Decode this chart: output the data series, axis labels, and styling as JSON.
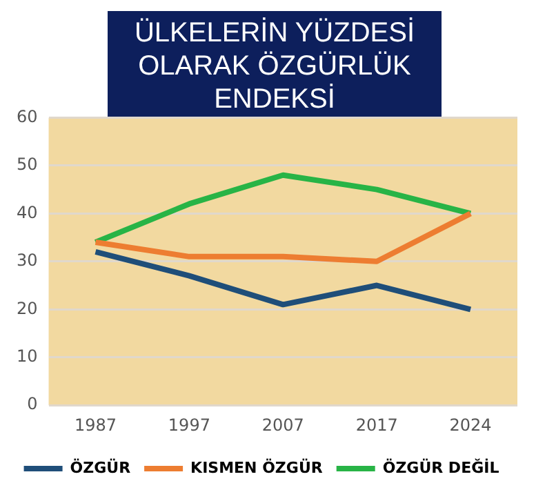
{
  "chart_data": {
    "type": "line",
    "title": "ÜLKELERİN YÜZDESİ OLARAK ÖZGÜRLÜK ENDEKSİ",
    "categories": [
      "1987",
      "1997",
      "2007",
      "2017",
      "2024"
    ],
    "series": [
      {
        "name": "ÖZGÜR",
        "color": "#1f4e79",
        "values": [
          32,
          27,
          21,
          25,
          20
        ]
      },
      {
        "name": "KISMEN ÖZGÜR",
        "color": "#ed7d31",
        "values": [
          34,
          31,
          31,
          30,
          40
        ]
      },
      {
        "name": "ÖZGÜR DEĞİL",
        "color": "#28b446",
        "values": [
          34,
          42,
          48,
          45,
          40
        ]
      }
    ],
    "ylim": [
      0,
      60
    ],
    "yticks": [
      0,
      10,
      20,
      30,
      40,
      50,
      60
    ],
    "grid": "y",
    "legend": "bottom",
    "marker": "none",
    "line_style": "solid"
  }
}
